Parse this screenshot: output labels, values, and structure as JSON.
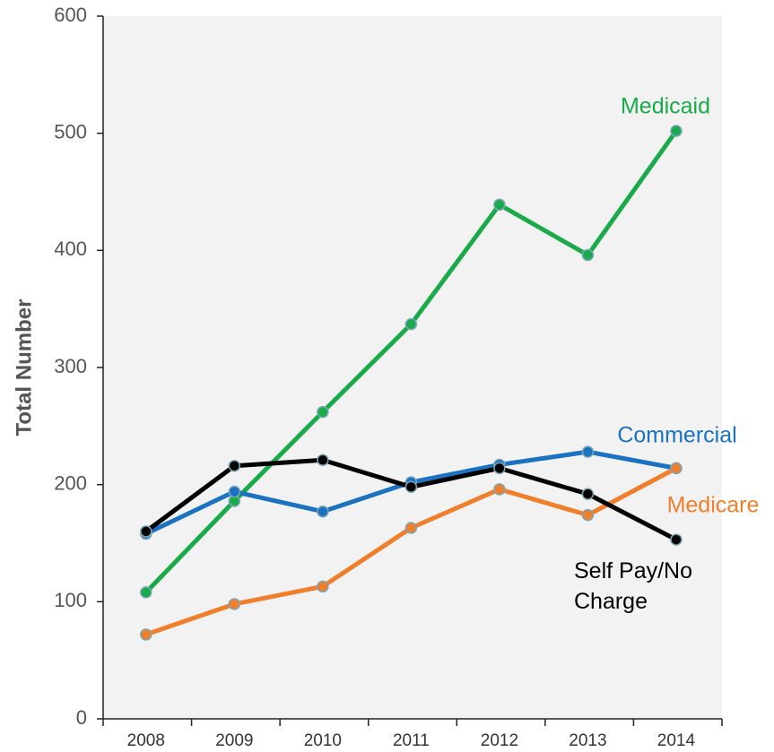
{
  "chart_data": {
    "type": "line",
    "y_label": "Total Number",
    "categories": [
      "2008",
      "2009",
      "2010",
      "2011",
      "2012",
      "2013",
      "2014"
    ],
    "series": [
      {
        "name": "Medicaid",
        "color": "#1aaa4a",
        "values": [
          108,
          186,
          262,
          337,
          439,
          396,
          502
        ]
      },
      {
        "name": "Commercial",
        "color": "#1a72c0",
        "values": [
          158,
          194,
          177,
          202,
          217,
          228,
          214
        ]
      },
      {
        "name": "Medicare",
        "color": "#f07f2c",
        "values": [
          72,
          98,
          113,
          163,
          196,
          174,
          214
        ]
      },
      {
        "name": "Self Pay/No Charge",
        "color": "#000000",
        "values": [
          160,
          216,
          221,
          198,
          214,
          192,
          153
        ]
      }
    ],
    "ylim": [
      0,
      600
    ],
    "yticks": [
      0,
      100,
      200,
      300,
      400,
      500,
      600
    ]
  }
}
